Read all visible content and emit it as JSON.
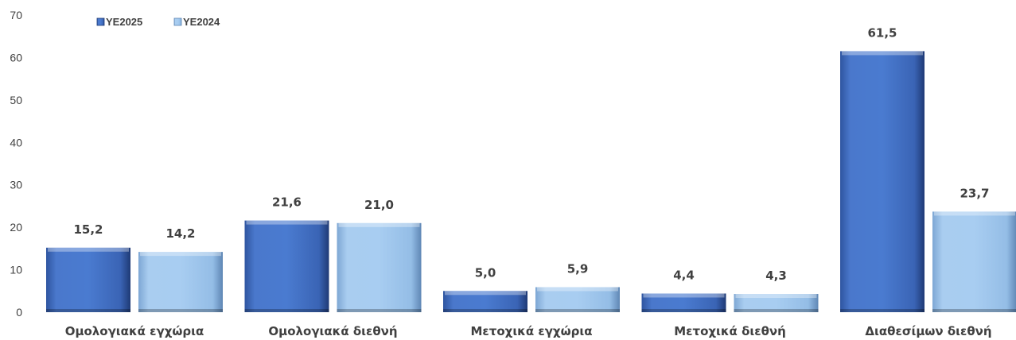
{
  "chart_data": {
    "type": "bar",
    "title": "",
    "xlabel": "",
    "ylabel": "",
    "ylim": [
      0,
      70
    ],
    "yticks": [
      0,
      10,
      20,
      30,
      40,
      50,
      60,
      70
    ],
    "grid": false,
    "legend_position": "top-left",
    "categories": [
      "Ομολογιακά εγχώρια",
      "Ομολογιακά διεθνή",
      "Μετοχικά εγχώρια",
      "Μετοχικά διεθνή",
      "Διαθεσίμων διεθνή"
    ],
    "series": [
      {
        "name": "YE2025",
        "values": [
          15.2,
          21.6,
          5.0,
          4.4,
          61.5
        ],
        "labels": [
          "15,2",
          "21,6",
          "5,0",
          "4,4",
          "61,5"
        ],
        "color": "#4472C4"
      },
      {
        "name": "YE2024",
        "values": [
          14.2,
          21.0,
          5.9,
          4.3,
          23.7
        ],
        "labels": [
          "14,2",
          "21,0",
          "5,9",
          "4,3",
          "23,7"
        ],
        "color": "#9DC3E6"
      }
    ]
  }
}
